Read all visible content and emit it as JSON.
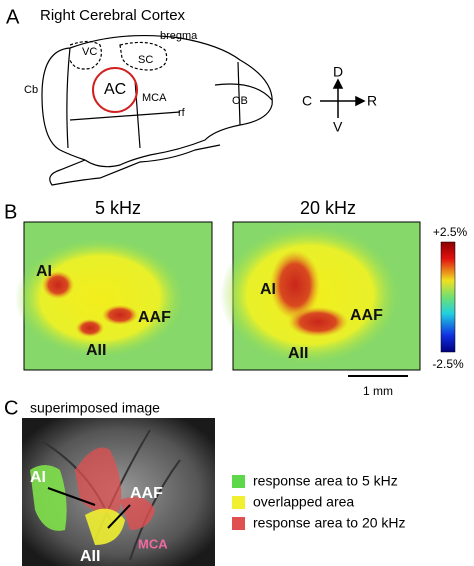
{
  "panel_a": {
    "label": "A",
    "title": "Right Cerebral Cortex",
    "regions": {
      "vc": "VC",
      "sc": "SC",
      "bregma": "bregma",
      "cb": "Cb",
      "ac": "AC",
      "mca": "MCA",
      "rf": "rf",
      "ob": "OB"
    },
    "compass": {
      "up": "D",
      "down": "V",
      "left": "C",
      "right": "R"
    }
  },
  "panel_b": {
    "label": "B",
    "maps": [
      {
        "title": "5 kHz",
        "ai": "AI",
        "aaf": "AAF",
        "aii": "AII"
      },
      {
        "title": "20 kHz",
        "ai": "AI",
        "aaf": "AAF",
        "aii": "AII"
      }
    ],
    "colorbar": {
      "max": "+2.5%",
      "min": "-2.5%"
    },
    "scale_bar": "1 mm"
  },
  "panel_c": {
    "label": "C",
    "title": "superimposed image",
    "image_labels": {
      "ai": "AI",
      "aaf": "AAF",
      "aii": "AII",
      "mca": "MCA"
    },
    "legend": [
      "response area to 5 kHz",
      "overlapped area",
      "response area to 20 kHz"
    ]
  }
}
